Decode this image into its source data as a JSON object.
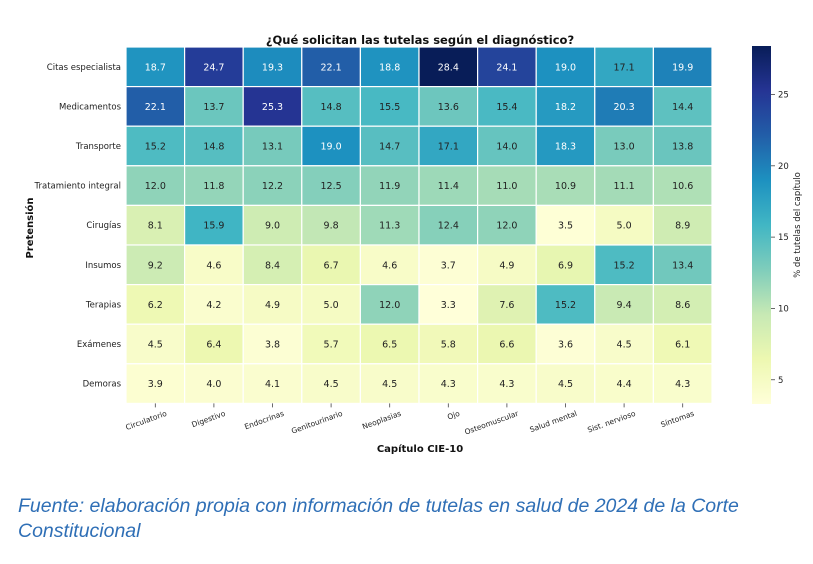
{
  "chart_data": {
    "type": "heatmap",
    "title": "¿Qué solicitan las tutelas según el diagnóstico?",
    "xlabel": "Capítulo CIE-10",
    "ylabel": "Pretensión",
    "colorbar_label": "% de tutelas del capítulo",
    "colorbar_ticks": [
      5,
      10,
      15,
      20,
      25
    ],
    "color_range": [
      3.3,
      28.4
    ],
    "columns": [
      "Circulatorio",
      "Digestivo",
      "Endocrinas",
      "Genitourinario",
      "Neoplasias",
      "Ojo",
      "Osteomuscular",
      "Salud mental",
      "Sist. nervioso",
      "Síntomas"
    ],
    "rows": [
      "Citas especialista",
      "Medicamentos",
      "Transporte",
      "Tratamiento integral",
      "Cirugías",
      "Insumos",
      "Terapias",
      "Exámenes",
      "Demoras"
    ],
    "values": [
      [
        18.7,
        24.7,
        19.3,
        22.1,
        18.8,
        28.4,
        24.1,
        19.0,
        17.1,
        19.9
      ],
      [
        22.1,
        13.7,
        25.3,
        14.8,
        15.5,
        13.6,
        15.4,
        18.2,
        20.3,
        14.4
      ],
      [
        15.2,
        14.8,
        13.1,
        19.0,
        14.7,
        17.1,
        14.0,
        18.3,
        13.0,
        13.8
      ],
      [
        12.0,
        11.8,
        12.2,
        12.5,
        11.9,
        11.4,
        11.0,
        10.9,
        11.1,
        10.6
      ],
      [
        8.1,
        15.9,
        9.0,
        9.8,
        11.3,
        12.4,
        12.0,
        3.5,
        5.0,
        8.9
      ],
      [
        9.2,
        4.6,
        8.4,
        6.7,
        4.6,
        3.7,
        4.9,
        6.9,
        15.2,
        13.4
      ],
      [
        6.2,
        4.2,
        4.9,
        5.0,
        12.0,
        3.3,
        7.6,
        15.2,
        9.4,
        8.6
      ],
      [
        4.5,
        6.4,
        3.8,
        5.7,
        6.5,
        5.8,
        6.6,
        3.6,
        4.5,
        6.1
      ],
      [
        3.9,
        4.0,
        4.1,
        4.5,
        4.5,
        4.3,
        4.3,
        4.5,
        4.4,
        4.3
      ]
    ]
  },
  "footer": {
    "source": "Fuente: elaboración propia con información de tutelas en salud de 2024 de la Corte Constitucional"
  }
}
